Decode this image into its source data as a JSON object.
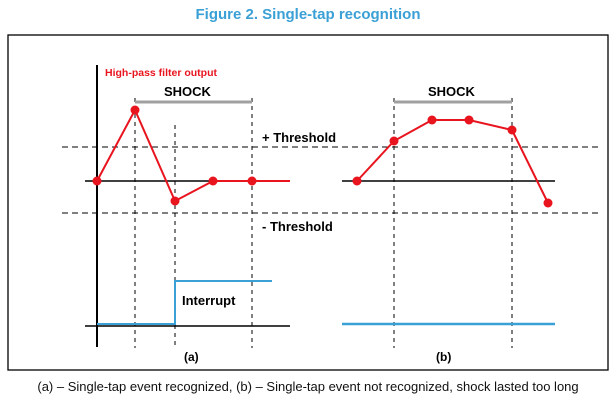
{
  "figure_title": "Figure 2. Single-tap recognition",
  "caption": "(a) – Single-tap event recognized, (b) – Single-tap event not recognized, shock lasted too long",
  "labels": {
    "signal": "High-pass filter output",
    "shock_a": "SHOCK",
    "shock_b": "SHOCK",
    "pos_threshold": "+ Threshold",
    "neg_threshold": "- Threshold",
    "interrupt": "Interrupt",
    "panel_a": "(a)",
    "panel_b": "(b)"
  },
  "colors": {
    "signal": "#e8141e",
    "interrupt": "#3aa0d5",
    "shock_bar": "#a0a0a0",
    "title": "#3aa0d5"
  }
}
